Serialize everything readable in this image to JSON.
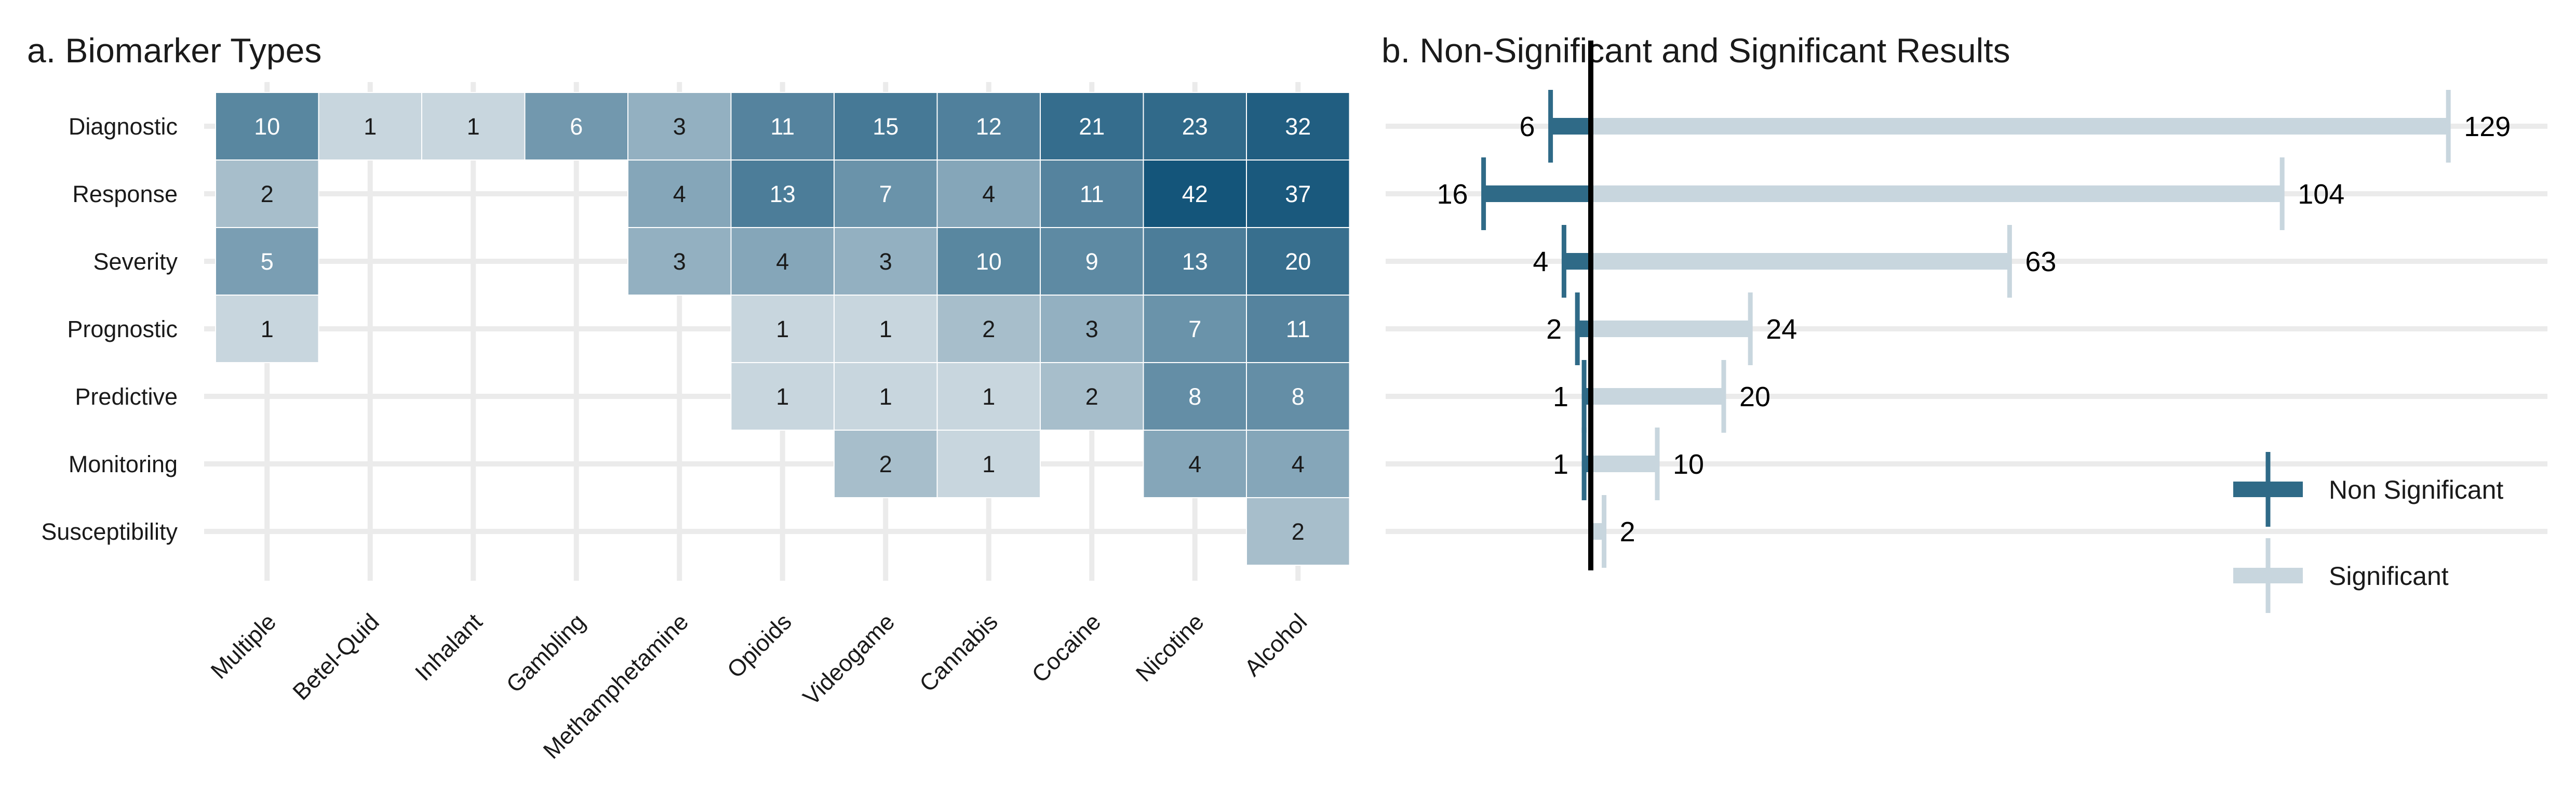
{
  "chart_data": [
    {
      "type": "heatmap",
      "title": "a. Biomarker Types",
      "rows": [
        "Diagnostic",
        "Response",
        "Severity",
        "Prognostic",
        "Predictive",
        "Monitoring",
        "Susceptibility"
      ],
      "columns": [
        "Multiple",
        "Betel-Quid",
        "Inhalant",
        "Gambling",
        "Methamphetamine",
        "Opioids",
        "Videogame",
        "Cannabis",
        "Cocaine",
        "Nicotine",
        "Alcohol"
      ],
      "values": [
        [
          10,
          1,
          1,
          6,
          3,
          11,
          15,
          12,
          21,
          23,
          32
        ],
        [
          2,
          null,
          null,
          null,
          4,
          13,
          7,
          4,
          11,
          42,
          37
        ],
        [
          5,
          null,
          null,
          null,
          3,
          4,
          3,
          10,
          9,
          13,
          20
        ],
        [
          1,
          null,
          null,
          null,
          null,
          1,
          1,
          2,
          3,
          7,
          11
        ],
        [
          null,
          null,
          null,
          null,
          null,
          1,
          1,
          1,
          2,
          8,
          8
        ],
        [
          null,
          null,
          null,
          null,
          null,
          null,
          2,
          1,
          null,
          4,
          4
        ],
        [
          null,
          null,
          null,
          null,
          null,
          null,
          null,
          null,
          null,
          null,
          2
        ]
      ],
      "colors": {
        "low": "#c8d6de",
        "high": "#14557a",
        "text_light": "#ffffff",
        "text_dark": "#1a1a1a",
        "grid": "#ebebeb"
      }
    },
    {
      "type": "bar",
      "title": "b. Non-Significant and Significant Results",
      "categories": [
        "Diagnostic",
        "Response",
        "Severity",
        "Prognostic",
        "Predictive",
        "Monitoring",
        "Susceptibility"
      ],
      "series": [
        {
          "name": "Non Significant",
          "values": [
            6,
            16,
            4,
            2,
            1,
            1,
            0
          ],
          "color": "#2f6a87",
          "direction": "left"
        },
        {
          "name": "Significant",
          "values": [
            129,
            104,
            63,
            24,
            20,
            10,
            2
          ],
          "color": "#c8d6de",
          "direction": "right"
        }
      ],
      "value_labels": {
        "non_significant": [
          "6",
          "16",
          "4",
          "2",
          "1",
          "1",
          ""
        ],
        "significant": [
          "129",
          "104",
          "63",
          "24",
          "20",
          "10",
          "2"
        ]
      },
      "legend": {
        "position": "bottom-right",
        "items": [
          "Non Significant",
          "Significant"
        ]
      },
      "grid": "horizontal"
    }
  ]
}
